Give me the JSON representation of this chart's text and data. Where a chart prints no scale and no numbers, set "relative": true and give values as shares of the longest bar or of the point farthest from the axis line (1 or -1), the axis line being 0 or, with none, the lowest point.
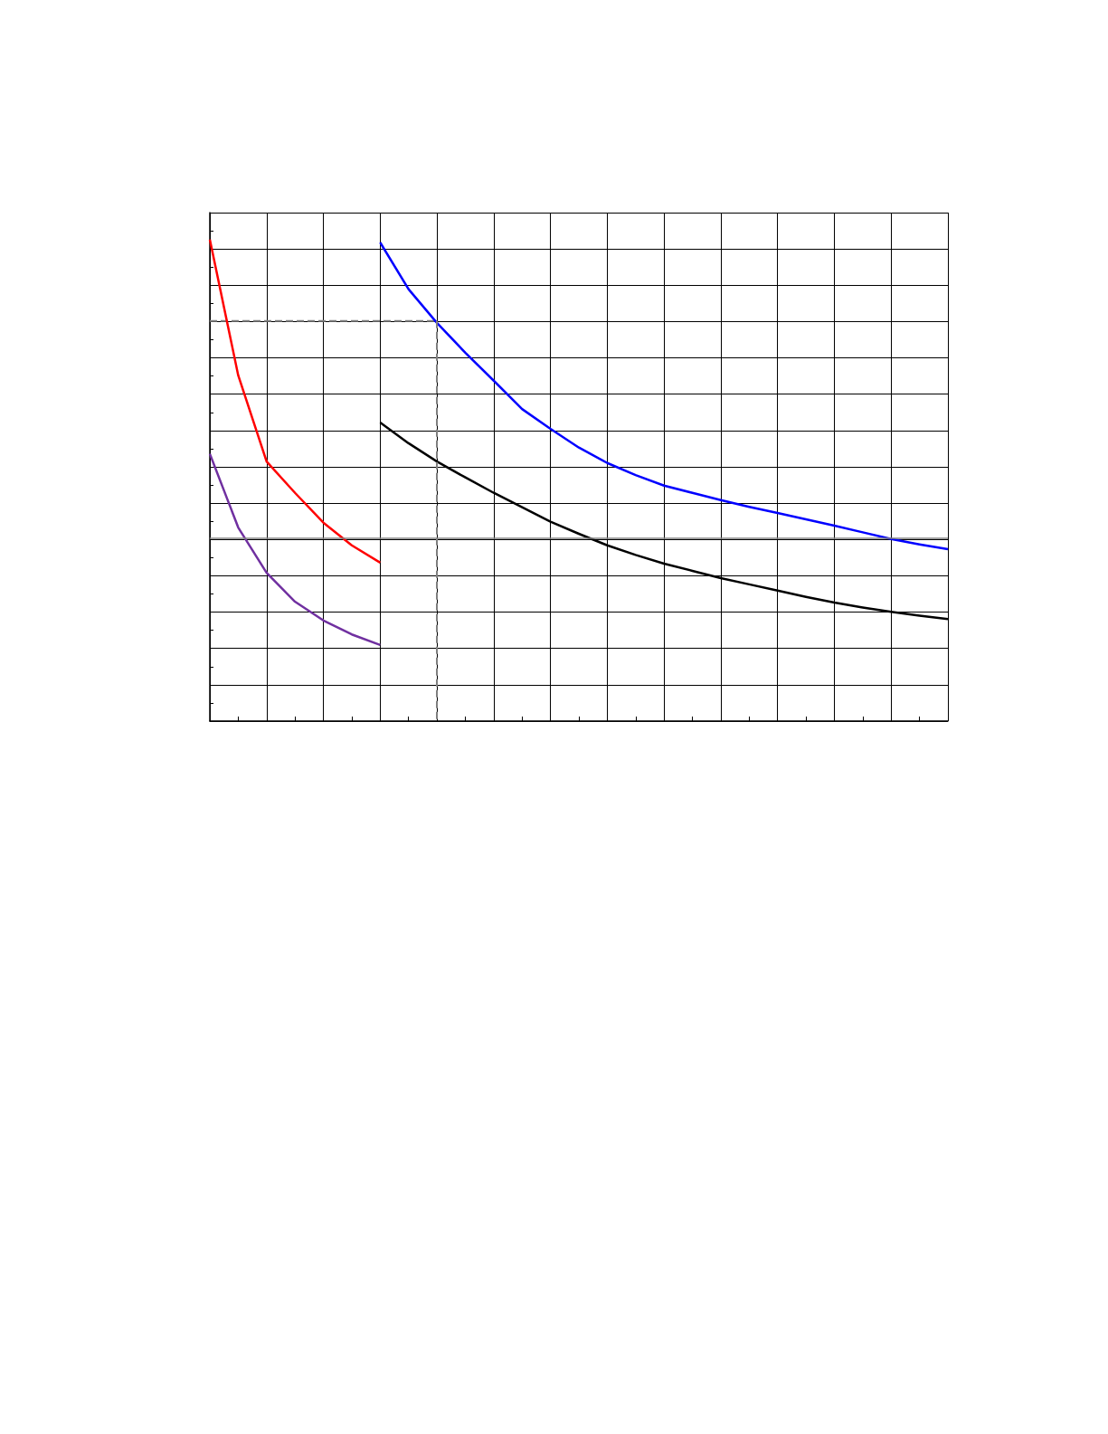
{
  "chart_data": {
    "type": "line",
    "relative": true,
    "grid": true,
    "marker": "none",
    "line_style": "solid",
    "categories": [
      null,
      null,
      null,
      null,
      null,
      null,
      null,
      null,
      null,
      null,
      null,
      null,
      null,
      null,
      null,
      null,
      null,
      null,
      null,
      null,
      null,
      null,
      null,
      null,
      null,
      null,
      null
    ],
    "ref_lines": [
      {
        "axis": "y",
        "value": 0.38,
        "color": "#808080",
        "line_style": "solid"
      }
    ],
    "series": [
      {
        "color": "#7030a0",
        "values": [
          0.555,
          0.402,
          0.308,
          0.248,
          0.209,
          0.18,
          0.158,
          null,
          null,
          null,
          null,
          null,
          null,
          null,
          null,
          null,
          null,
          null,
          null,
          null,
          null,
          null,
          null,
          null,
          null,
          null,
          null
        ]
      },
      {
        "color": "#ff0000",
        "values": [
          1.0,
          0.718,
          0.539,
          0.474,
          0.412,
          0.365,
          0.329,
          null,
          null,
          null,
          null,
          null,
          null,
          null,
          null,
          null,
          null,
          null,
          null,
          null,
          null,
          null,
          null,
          null,
          null,
          null,
          null
        ]
      },
      {
        "color": "#000000",
        "values": [
          null,
          null,
          null,
          null,
          null,
          null,
          0.62,
          0.577,
          0.539,
          0.506,
          0.474,
          0.444,
          0.414,
          0.389,
          0.365,
          0.345,
          0.327,
          0.312,
          0.297,
          0.284,
          0.271,
          0.258,
          0.246,
          0.236,
          0.227,
          0.219,
          0.212
        ]
      },
      {
        "color": "#0000ff",
        "values": [
          null,
          null,
          null,
          null,
          null,
          null,
          0.994,
          0.897,
          0.827,
          0.765,
          0.707,
          0.648,
          0.607,
          0.568,
          0.536,
          0.511,
          0.489,
          0.474,
          0.459,
          0.445,
          0.432,
          0.419,
          0.406,
          0.392,
          0.378,
          0.367,
          0.357
        ]
      },
      {
        "color": "#808080",
        "line_style": "dashed",
        "values": [
          0.831,
          0.831,
          0.831,
          0.831,
          0.831,
          0.831,
          0.831,
          0.831,
          0.831,
          null,
          null,
          null,
          null,
          null,
          null,
          null,
          null,
          null,
          null,
          null,
          null,
          null,
          null,
          null,
          null,
          null,
          null
        ]
      }
    ]
  }
}
